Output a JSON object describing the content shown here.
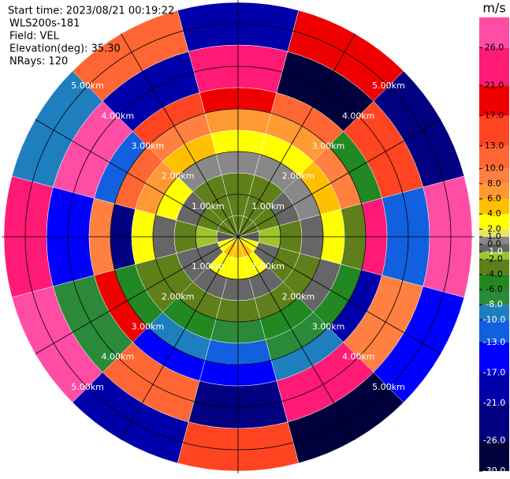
{
  "chart_data": {
    "type": "ppi",
    "title_lines": [
      "Start time: 2023/08/21 00:19:22",
      "WLS200s-181",
      "Field: VEL",
      "Elevation(deg): 35.30",
      "NRays: 120"
    ],
    "field": {
      "azimuths": [
        0,
        30,
        60,
        90,
        120,
        150,
        180,
        210,
        240,
        270,
        300,
        330
      ],
      "range_edges": [
        0,
        0.5,
        1,
        1.5,
        2,
        2.5,
        3,
        3.5,
        4.5,
        5.5
      ],
      "values": [
        [
          -3,
          -3,
          -3,
          0.5,
          3,
          7,
          18,
          25,
          -20
        ],
        [
          -3,
          -3,
          -2.5,
          0.5,
          3,
          7,
          12,
          -28,
          19
        ],
        [
          -3,
          -2.5,
          -0.5,
          0.5,
          5,
          9,
          -5,
          14,
          -24
        ],
        [
          -0.5,
          -1.5,
          -2.5,
          -0.5,
          3,
          -3,
          22,
          -11,
          27
        ],
        [
          3,
          -0.5,
          -2.5,
          -3,
          -0.5,
          -5,
          -18,
          8,
          -15
        ],
        [
          5,
          3,
          -0.5,
          -3,
          -5,
          -7,
          -9,
          24,
          -27
        ],
        [
          5,
          3,
          -0.5,
          -3,
          -7,
          -12,
          -15,
          -22,
          16
        ],
        [
          5,
          3,
          -0.5,
          -3,
          -5,
          -9,
          -14,
          11,
          -19
        ],
        [
          3,
          -0.5,
          -0.5,
          -2.5,
          -3,
          -5,
          20,
          -7,
          29
        ],
        [
          -0.5,
          -1.5,
          -2.5,
          -0.5,
          3,
          -25,
          9,
          -16,
          23
        ],
        [
          -3,
          -2.5,
          -0.5,
          3,
          7,
          10,
          -12,
          27,
          -9
        ],
        [
          -3,
          -3,
          -2.5,
          0.5,
          5,
          9,
          15,
          -21,
          12
        ]
      ]
    },
    "range_rings": [
      {
        "value": 1,
        "label": "1.00km"
      },
      {
        "value": 2,
        "label": "2.00km"
      },
      {
        "value": 3,
        "label": "3.00km"
      },
      {
        "value": 4,
        "label": "4.00km"
      },
      {
        "value": 5,
        "label": "5.00km"
      }
    ],
    "colorbar": {
      "unit": "m/s",
      "ylim": [
        -30,
        30
      ],
      "ticks": [
        {
          "value": -30,
          "label": "-30.0"
        },
        {
          "value": -26,
          "label": "-26.0"
        },
        {
          "value": -21,
          "label": "-21.0"
        },
        {
          "value": -17,
          "label": "-17.0"
        },
        {
          "value": -13,
          "label": "-13.0"
        },
        {
          "value": -10,
          "label": "-10.0"
        },
        {
          "value": -8,
          "label": "-8.0"
        },
        {
          "value": -6,
          "label": "-6.0"
        },
        {
          "value": -4,
          "label": "-4.0"
        },
        {
          "value": -2,
          "label": "-2.0"
        },
        {
          "value": -1,
          "label": "-1.0"
        },
        {
          "value": 0,
          "label": "0.0"
        },
        {
          "value": 1,
          "label": "1.0"
        },
        {
          "value": 2,
          "label": "2.0"
        },
        {
          "value": 4,
          "label": "4.0"
        },
        {
          "value": 6,
          "label": "6.0"
        },
        {
          "value": 8,
          "label": "8.0"
        },
        {
          "value": 10,
          "label": "10.0"
        },
        {
          "value": 13,
          "label": "13.0"
        },
        {
          "value": 17,
          "label": "17.0"
        },
        {
          "value": 21,
          "label": "21.0"
        },
        {
          "value": 26,
          "label": "26.0"
        }
      ],
      "colors": [
        "#00003c",
        "#000080",
        "#0000aa",
        "#0000ff",
        "#1060e0",
        "#1e7fbf",
        "#2a8a3a",
        "#228822",
        "#5f7f1a",
        "#9dc42c",
        "#666666",
        "#888888",
        "#e8e860",
        "#ffff00",
        "#ffc000",
        "#ff9933",
        "#ff8040",
        "#ff6633",
        "#ff4422",
        "#ee0000",
        "#ff1a75",
        "#ff4da6"
      ]
    }
  }
}
